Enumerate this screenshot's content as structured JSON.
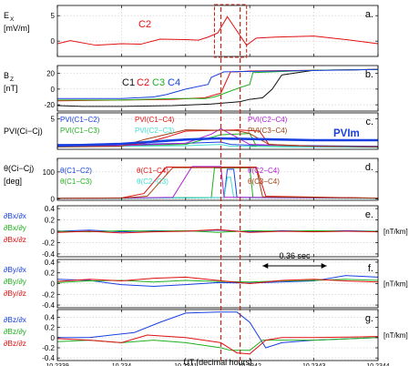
{
  "chart_data": [
    {
      "type": "line",
      "panel_letter": "a.",
      "ylabel_lines": [
        "E",
        "[mV/m]"
      ],
      "ylabel_sub": "X",
      "yticks": [
        "0",
        "5"
      ],
      "ylim": [
        -3,
        7
      ],
      "xlim": [
        10.2339,
        10.2344
      ],
      "grid": true,
      "annotations": [
        {
          "text": "C2",
          "color": "#e01010"
        }
      ],
      "series": [
        {
          "name": "C2",
          "color": "#e01010",
          "x": [
            10.2339,
            10.23392,
            10.23396,
            10.234,
            10.23403,
            10.23406,
            10.2341,
            10.23412,
            10.234135,
            10.23415,
            10.234165,
            10.23418,
            10.234195,
            10.23421,
            10.23424,
            10.2343,
            10.23435,
            10.2344
          ],
          "y": [
            -0.5,
            0.1,
            -0.8,
            -0.5,
            -0.6,
            0.4,
            0.3,
            0.2,
            0.8,
            1.6,
            4.8,
            2.0,
            -0.8,
            0.6,
            0.8,
            1.0,
            0.3,
            -0.5
          ]
        }
      ]
    },
    {
      "type": "line",
      "panel_letter": "b.",
      "ylabel_lines": [
        "B",
        "[nT]"
      ],
      "ylabel_sub": "Z",
      "yticks": [
        "-20",
        "0",
        "20"
      ],
      "ylim": [
        -28,
        30
      ],
      "xlim": [
        10.2339,
        10.2344
      ],
      "grid": true,
      "legend_label": [
        "C1",
        "C2",
        "C3",
        "C4"
      ],
      "series": [
        {
          "name": "C1",
          "color": "#111111",
          "x": [
            10.2339,
            10.23394,
            10.234,
            10.23408,
            10.23414,
            10.234185,
            10.2342,
            10.23422,
            10.234235,
            10.23425,
            10.2343,
            10.2344
          ],
          "y": [
            -21,
            -22,
            -22,
            -21,
            -19,
            -16,
            -13,
            -11,
            0,
            18,
            24,
            25
          ]
        },
        {
          "name": "C2",
          "color": "#e01010",
          "x": [
            10.2339,
            10.234,
            10.23408,
            10.23413,
            10.234155,
            10.23417,
            10.23418,
            10.2342,
            10.2344
          ],
          "y": [
            -15,
            -14,
            -13,
            -11,
            -5,
            22,
            22,
            23,
            25
          ]
        },
        {
          "name": "C3",
          "color": "#20b020",
          "x": [
            10.2339,
            10.234,
            10.23408,
            10.23413,
            10.234145,
            10.234185,
            10.2342,
            10.234205,
            10.2343,
            10.2344
          ],
          "y": [
            -14,
            -14,
            -12,
            -12,
            -10,
            2,
            6,
            21,
            24,
            25
          ]
        },
        {
          "name": "C4",
          "color": "#1840e0",
          "x": [
            10.2339,
            10.234,
            10.23405,
            10.23407,
            10.2341,
            10.234135,
            10.23414,
            10.23416,
            10.2344
          ],
          "y": [
            -12,
            -12,
            -10,
            -7,
            0,
            6,
            15,
            22,
            25
          ]
        }
      ]
    },
    {
      "type": "line",
      "panel_letter": "c.",
      "ylabel_lines": [
        "PVI(Ci−Cj)"
      ],
      "yticks": [
        "5"
      ],
      "ylim": [
        0,
        6
      ],
      "xlim": [
        10.2339,
        10.2344
      ],
      "grid": true,
      "legend_entries": [
        {
          "text": "PVI(C1−C2)",
          "color": "#1840e0"
        },
        {
          "text": "PVI(C1−C3)",
          "color": "#20b020"
        },
        {
          "text": "PVI(C1−C4)",
          "color": "#e01010"
        },
        {
          "text": "PVI(C2−C3)",
          "color": "#40e0d0"
        },
        {
          "text": "PVI(C2−C4)",
          "color": "#b020d0"
        },
        {
          "text": "PVI(C3−C4)",
          "color": "#a04010"
        },
        {
          "text": "PVIm",
          "color": "#1840e0"
        }
      ],
      "series": [
        {
          "name": "PVI(C1−C2)",
          "color": "#1840e0",
          "x": [
            10.2339,
            10.234,
            10.2341,
            10.234155,
            10.23417,
            10.2342,
            10.2343,
            10.2344
          ],
          "y": [
            0.8,
            0.8,
            1.0,
            1.2,
            0.8,
            0.7,
            0.6,
            0.5
          ]
        },
        {
          "name": "PVI(C1−C3)",
          "color": "#20b020",
          "x": [
            10.2339,
            10.234,
            10.2341,
            10.234155,
            10.2342,
            10.23421,
            10.2342,
            10.2343,
            10.2344
          ],
          "y": [
            0.6,
            0.6,
            0.8,
            2.4,
            2.6,
            0.6,
            0.5,
            0.4,
            0.4
          ]
        },
        {
          "name": "PVI(C1−C4)",
          "color": "#e01010",
          "x": [
            10.2339,
            10.234,
            10.234035,
            10.23407,
            10.2341,
            10.23418,
            10.234215,
            10.23423,
            10.2343,
            10.2344
          ],
          "y": [
            0.5,
            0.6,
            1.0,
            2.0,
            3.0,
            3.2,
            3.0,
            0.8,
            0.5,
            0.4
          ]
        },
        {
          "name": "PVI(C2−C3)",
          "color": "#40e0d0",
          "x": [
            10.2339,
            10.234,
            10.2341,
            10.234155,
            10.23417,
            10.23425,
            10.2344
          ],
          "y": [
            0.4,
            0.5,
            0.6,
            0.8,
            0.5,
            0.4,
            0.3
          ]
        },
        {
          "name": "PVI(C2−C4)",
          "color": "#b020d0",
          "x": [
            10.2339,
            10.234,
            10.2341,
            10.23414,
            10.234155,
            10.2342,
            10.2343,
            10.2344
          ],
          "y": [
            0.5,
            0.6,
            1.0,
            2.5,
            3.4,
            0.8,
            0.5,
            0.4
          ]
        },
        {
          "name": "PVI(C3−C4)",
          "color": "#a04010",
          "x": [
            10.2339,
            10.234,
            10.234035,
            10.2341,
            10.23418,
            10.2342,
            10.23423,
            10.2343,
            10.2344
          ],
          "y": [
            0.4,
            0.5,
            1.6,
            3.2,
            3.1,
            2.6,
            0.8,
            0.5,
            0.4
          ]
        },
        {
          "name": "PVIm",
          "color": "#1840e0",
          "thick": true,
          "x": [
            10.2339,
            10.234,
            10.23404,
            10.2341,
            10.23415,
            10.2342,
            10.23425,
            10.2343,
            10.2344
          ],
          "y": [
            0.6,
            0.9,
            1.2,
            1.6,
            1.8,
            1.7,
            1.6,
            1.5,
            1.5
          ]
        }
      ]
    },
    {
      "type": "line",
      "panel_letter": "d.",
      "ylabel_lines": [
        "θ(Ci−Cj)",
        "[deg]"
      ],
      "yticks": [
        "0",
        "100"
      ],
      "ylim": [
        -5,
        150
      ],
      "xlim": [
        10.2339,
        10.2344
      ],
      "grid": true,
      "legend_entries": [
        {
          "text": "θ(C1−C2)",
          "color": "#1840e0"
        },
        {
          "text": "θ(C1−C3)",
          "color": "#20b020"
        },
        {
          "text": "θ(C1−C4)",
          "color": "#e01010"
        },
        {
          "text": "θ(C2−C3)",
          "color": "#40e0d0"
        },
        {
          "text": "θ(C2−C4)",
          "color": "#b020d0"
        },
        {
          "text": "θ(C3−C4)",
          "color": "#a04010"
        }
      ],
      "series": [
        {
          "name": "θ(C1−C2)",
          "color": "#1840e0",
          "x": [
            10.2339,
            10.234,
            10.23416,
            10.234165,
            10.234175,
            10.23418,
            10.2344
          ],
          "y": [
            2,
            3,
            5,
            110,
            110,
            6,
            3
          ]
        },
        {
          "name": "θ(C1−C3)",
          "color": "#20b020",
          "x": [
            10.2339,
            10.234,
            10.23414,
            10.234145,
            10.2342,
            10.234205,
            10.2344
          ],
          "y": [
            2,
            3,
            5,
            115,
            115,
            6,
            3
          ]
        },
        {
          "name": "θ(C1−C4)",
          "color": "#e01010",
          "x": [
            10.2339,
            10.234,
            10.234035,
            10.23407,
            10.23421,
            10.234225,
            10.2344
          ],
          "y": [
            2,
            4,
            20,
            118,
            118,
            10,
            3
          ]
        },
        {
          "name": "θ(C2−C3)",
          "color": "#40e0d0",
          "x": [
            10.2339,
            10.234,
            10.23416,
            10.234165,
            10.23417,
            10.234175,
            10.2344
          ],
          "y": [
            2,
            2,
            5,
            80,
            80,
            5,
            2
          ]
        },
        {
          "name": "θ(C2−C4)",
          "color": "#b020d0",
          "x": [
            10.2339,
            10.234,
            10.23408,
            10.23411,
            10.234155,
            10.23416,
            10.2344
          ],
          "y": [
            2,
            3,
            6,
            120,
            120,
            6,
            3
          ]
        },
        {
          "name": "θ(C3−C4)",
          "color": "#a04010",
          "x": [
            10.2339,
            10.234,
            10.23404,
            10.23408,
            10.23421,
            10.23422,
            10.2344
          ],
          "y": [
            2,
            3,
            10,
            116,
            116,
            8,
            3
          ]
        }
      ]
    },
    {
      "type": "line",
      "panel_letter": "e.",
      "ylabel_lines": [
        "∂Bx/∂x",
        "∂Bx/∂y",
        "∂Bx/∂z"
      ],
      "ylabel_colors": [
        "#1840e0",
        "#20b020",
        "#e01010"
      ],
      "unit": "[nT/km]",
      "yticks": [
        "0.4",
        "0.2",
        "0",
        "-0.2",
        "-0.4"
      ],
      "ylim": [
        -0.45,
        0.45
      ],
      "xlim": [
        10.2339,
        10.2344
      ],
      "grid": true,
      "series": [
        {
          "name": "∂Bx/∂x",
          "color": "#1840e0",
          "x": [
            10.2339,
            10.23395,
            10.234,
            10.23405,
            10.2341,
            10.23415,
            10.2342,
            10.23425,
            10.2343,
            10.23435,
            10.2344
          ],
          "y": [
            0.0,
            0.02,
            -0.01,
            0.01,
            0.0,
            0.02,
            -0.01,
            0.01,
            0.0,
            0.01,
            0.0
          ]
        },
        {
          "name": "∂Bx/∂y",
          "color": "#20b020",
          "x": [
            10.2339,
            10.23395,
            10.234,
            10.23405,
            10.2341,
            10.23415,
            10.2342,
            10.23425,
            10.2343,
            10.23435,
            10.2344
          ],
          "y": [
            0.0,
            -0.01,
            0.01,
            0.0,
            0.01,
            -0.02,
            0.01,
            0.0,
            0.01,
            0.0,
            0.0
          ]
        },
        {
          "name": "∂Bx/∂z",
          "color": "#e01010",
          "x": [
            10.2339,
            10.23395,
            10.234,
            10.23405,
            10.2341,
            10.23415,
            10.2342,
            10.23425,
            10.2343,
            10.23435,
            10.2344
          ],
          "y": [
            -0.02,
            0.0,
            -0.03,
            -0.01,
            0.0,
            0.03,
            -0.02,
            0.0,
            -0.01,
            0.0,
            -0.01
          ]
        }
      ]
    },
    {
      "type": "line",
      "panel_letter": "f.",
      "ylabel_lines": [
        "∂By/∂x",
        "∂By/∂y",
        "∂By/∂z"
      ],
      "ylabel_colors": [
        "#1840e0",
        "#20b020",
        "#e01010"
      ],
      "unit": "[nT/km]",
      "yticks": [
        "0.4",
        "0.2",
        "0",
        "-0.2",
        "-0.4"
      ],
      "ylim": [
        -0.45,
        0.45
      ],
      "xlim": [
        10.2339,
        10.2344
      ],
      "grid": true,
      "annotations": [
        {
          "text": "0.36 sec",
          "color": "#000000",
          "arrow_x": [
            10.23422,
            10.23432
          ]
        }
      ],
      "series": [
        {
          "name": "∂By/∂x",
          "color": "#1840e0",
          "x": [
            10.2339,
            10.23395,
            10.234,
            10.23405,
            10.2341,
            10.23415,
            10.2342,
            10.23425,
            10.2343,
            10.23435,
            10.2344
          ],
          "y": [
            0.08,
            0.06,
            -0.02,
            -0.05,
            -0.02,
            0.02,
            0.01,
            0.03,
            0.05,
            0.15,
            0.12
          ]
        },
        {
          "name": "∂By/∂y",
          "color": "#20b020",
          "x": [
            10.2339,
            10.23395,
            10.234,
            10.23405,
            10.2341,
            10.23415,
            10.2342,
            10.23425,
            10.2343,
            10.23435,
            10.2344
          ],
          "y": [
            0.02,
            0.05,
            0.06,
            0.03,
            0.06,
            0.04,
            0.03,
            0.05,
            0.06,
            0.08,
            0.06
          ]
        },
        {
          "name": "∂By/∂z",
          "color": "#e01010",
          "x": [
            10.2339,
            10.23395,
            10.234,
            10.23405,
            10.2341,
            10.23415,
            10.2342,
            10.23425,
            10.2343,
            10.23435,
            10.2344
          ],
          "y": [
            0.04,
            0.08,
            0.05,
            0.1,
            0.12,
            0.06,
            0.0,
            0.06,
            0.08,
            0.05,
            0.03
          ]
        }
      ]
    },
    {
      "type": "line",
      "panel_letter": "g.",
      "ylabel_lines": [
        "∂Bz/∂x",
        "∂Bz/∂y",
        "∂Bz/∂z"
      ],
      "ylabel_colors": [
        "#1840e0",
        "#20b020",
        "#e01010"
      ],
      "unit": "[nT/km]",
      "yticks": [
        "0.4",
        "0.2",
        "0",
        "-0.2",
        "-0.4"
      ],
      "ylim": [
        -0.45,
        0.55
      ],
      "xlim": [
        10.2339,
        10.2344
      ],
      "xticks": [
        "10.2339",
        "10.234",
        "10.2341",
        "10.2342",
        "10.2343",
        "10.2344"
      ],
      "xlabel": "UT [decimal hours]",
      "grid": true,
      "series": [
        {
          "name": "∂Bz/∂x",
          "color": "#1840e0",
          "x": [
            10.2339,
            10.23395,
            10.23402,
            10.23406,
            10.2341,
            10.23415,
            10.23418,
            10.2342,
            10.234225,
            10.23425,
            10.2343,
            10.2344
          ],
          "y": [
            0.0,
            0.0,
            0.1,
            0.3,
            0.48,
            0.5,
            0.5,
            0.3,
            -0.2,
            -0.1,
            -0.05,
            0.0
          ]
        },
        {
          "name": "∂Bz/∂y",
          "color": "#20b020",
          "x": [
            10.2339,
            10.23395,
            10.234,
            10.23405,
            10.2341,
            10.234155,
            10.23417,
            10.2342,
            10.23422,
            10.2343,
            10.2344
          ],
          "y": [
            -0.08,
            -0.05,
            -0.1,
            -0.05,
            -0.1,
            -0.2,
            -0.25,
            -0.25,
            -0.05,
            -0.05,
            0.0
          ]
        },
        {
          "name": "∂Bz/∂z",
          "color": "#e01010",
          "x": [
            10.2339,
            10.23395,
            10.234,
            10.23404,
            10.2341,
            10.234155,
            10.23418,
            10.2342,
            10.234225,
            10.23425,
            10.2343,
            10.2344
          ],
          "y": [
            -0.02,
            -0.05,
            -0.1,
            0.05,
            0.0,
            -0.1,
            -0.3,
            -0.32,
            -0.05,
            0.0,
            0.0,
            0.02
          ]
        }
      ]
    }
  ],
  "markers": {
    "dashed_lines_x": [
      10.234155,
      10.234185
    ],
    "box_x": [
      10.234145,
      10.234195
    ],
    "color": "#c03020"
  }
}
